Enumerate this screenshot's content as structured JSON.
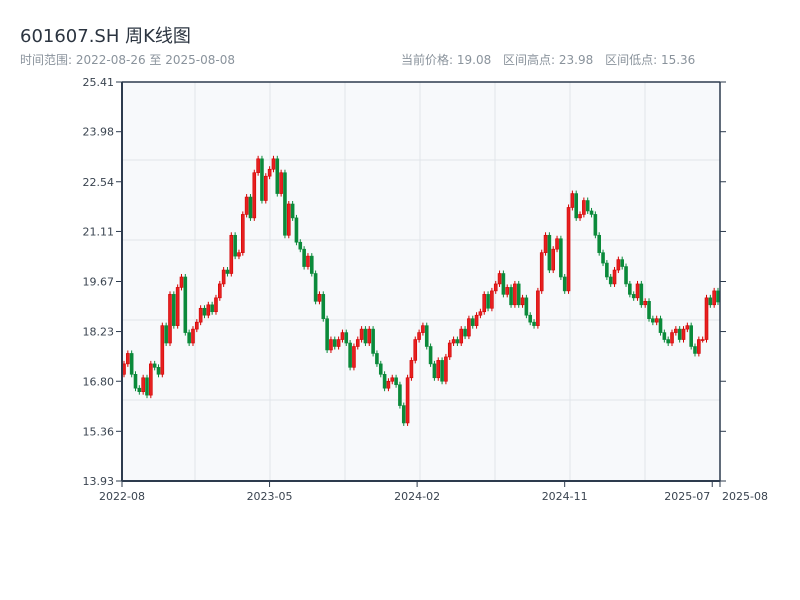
{
  "header": {
    "title": "601607.SH 周K线图",
    "range_label": "时间范围: 2022-08-26 至 2025-08-08",
    "current_price": "当前价格: 19.08",
    "range_high": "区间高点: 23.98",
    "range_low": "区间低点: 15.36"
  },
  "chart_data": {
    "type": "candlestick",
    "title": "601607.SH 周K线图",
    "interval": "weekly",
    "start_date": "2022-08-26",
    "end_date": "2025-08-08",
    "up_color": "#d40000",
    "down_color": "#0a8a3a",
    "ylim": [
      13.93,
      25.41
    ],
    "y_ticks": [
      "13.93",
      "15.36",
      "16.80",
      "18.23",
      "19.67",
      "21.11",
      "22.54",
      "23.98",
      "25.41"
    ],
    "x_ticks": [
      {
        "label": "2022-08",
        "date": "2022-08-26"
      },
      {
        "label": "2023-05",
        "date": "2023-05-19"
      },
      {
        "label": "2024-02",
        "date": "2024-02-09"
      },
      {
        "label": "2024-11",
        "date": "2024-11-01"
      },
      {
        "label": "2025-07",
        "date": "2025-07-25"
      },
      {
        "label": "2025-08",
        "date": "2025-08-08"
      }
    ],
    "grid": true,
    "open": [
      17.0,
      17.3,
      17.6,
      17.0,
      16.6,
      16.5,
      16.9,
      16.4,
      17.3,
      17.2,
      17.0,
      18.4,
      17.9,
      19.3,
      18.4,
      19.5,
      19.8,
      18.2,
      17.9,
      18.3,
      18.5,
      18.9,
      18.7,
      19.0,
      18.8,
      19.2,
      19.6,
      20.0,
      19.9,
      21.0,
      20.4,
      20.5,
      21.6,
      22.1,
      21.5,
      22.8,
      23.2,
      22.0,
      22.7,
      22.9,
      23.2,
      22.2,
      22.8,
      21.0,
      21.9,
      21.5,
      20.8,
      20.6,
      20.1,
      20.4,
      19.9,
      19.1,
      19.3,
      18.6,
      17.7,
      18.0,
      17.8,
      18.0,
      18.2,
      17.9,
      17.2,
      17.8,
      18.0,
      18.3,
      17.9,
      18.3,
      17.6,
      17.3,
      17.0,
      16.6,
      16.8,
      16.9,
      16.7,
      16.1,
      15.6,
      16.9,
      17.4,
      18.0,
      18.2,
      18.4,
      17.8,
      17.3,
      16.9,
      17.4,
      16.8,
      17.5,
      17.9,
      18.0,
      17.9,
      18.3,
      18.1,
      18.6,
      18.4,
      18.7,
      18.8,
      19.3,
      18.9,
      19.4,
      19.6,
      19.9,
      19.3,
      19.5,
      19.0,
      19.6,
      19.0,
      19.2,
      18.7,
      18.5,
      18.4,
      19.4,
      20.5,
      21.0,
      20.0,
      20.6,
      20.9,
      19.8,
      19.4,
      21.8,
      22.2,
      21.5,
      21.6,
      22.0,
      21.7,
      21.6,
      21.0,
      20.5,
      20.2,
      19.8,
      19.6,
      20.0,
      20.3,
      20.1,
      19.6,
      19.3,
      19.2,
      19.6,
      19.0,
      19.1,
      18.6,
      18.5,
      18.6,
      18.2,
      18.0,
      17.9,
      18.2,
      18.3,
      18.0,
      18.3,
      18.4,
      17.8,
      17.6,
      18.0,
      18.0,
      19.2,
      19.0,
      19.4
    ],
    "close": [
      17.3,
      17.6,
      17.0,
      16.6,
      16.5,
      16.9,
      16.4,
      17.3,
      17.2,
      17.0,
      18.4,
      17.9,
      19.3,
      18.4,
      19.5,
      19.8,
      18.2,
      17.9,
      18.3,
      18.5,
      18.9,
      18.7,
      19.0,
      18.8,
      19.2,
      19.6,
      20.0,
      19.9,
      21.0,
      20.4,
      20.5,
      21.6,
      22.1,
      21.5,
      22.8,
      23.2,
      22.0,
      22.7,
      22.9,
      23.2,
      22.2,
      22.8,
      21.0,
      21.9,
      21.5,
      20.8,
      20.6,
      20.1,
      20.4,
      19.9,
      19.1,
      19.3,
      18.6,
      17.7,
      18.0,
      17.8,
      18.0,
      18.2,
      17.9,
      17.2,
      17.8,
      18.0,
      18.3,
      17.9,
      18.3,
      17.6,
      17.3,
      17.0,
      16.6,
      16.8,
      16.9,
      16.7,
      16.1,
      15.6,
      16.9,
      17.4,
      18.0,
      18.2,
      18.4,
      17.8,
      17.3,
      16.9,
      17.4,
      16.8,
      17.5,
      17.9,
      18.0,
      17.9,
      18.3,
      18.1,
      18.6,
      18.4,
      18.7,
      18.8,
      19.3,
      18.9,
      19.4,
      19.6,
      19.9,
      19.3,
      19.5,
      19.0,
      19.6,
      19.0,
      19.2,
      18.7,
      18.5,
      18.4,
      19.4,
      20.5,
      21.0,
      20.0,
      20.6,
      20.9,
      19.8,
      19.4,
      21.8,
      22.2,
      21.5,
      21.6,
      22.0,
      21.7,
      21.6,
      21.0,
      20.5,
      20.2,
      19.8,
      19.6,
      20.0,
      20.3,
      20.1,
      19.6,
      19.3,
      19.2,
      19.6,
      19.0,
      19.1,
      18.6,
      18.5,
      18.6,
      18.2,
      18.0,
      17.9,
      18.2,
      18.3,
      18.0,
      18.3,
      18.4,
      17.8,
      17.6,
      18.0,
      18.0,
      19.2,
      19.0,
      19.4,
      19.08
    ]
  }
}
